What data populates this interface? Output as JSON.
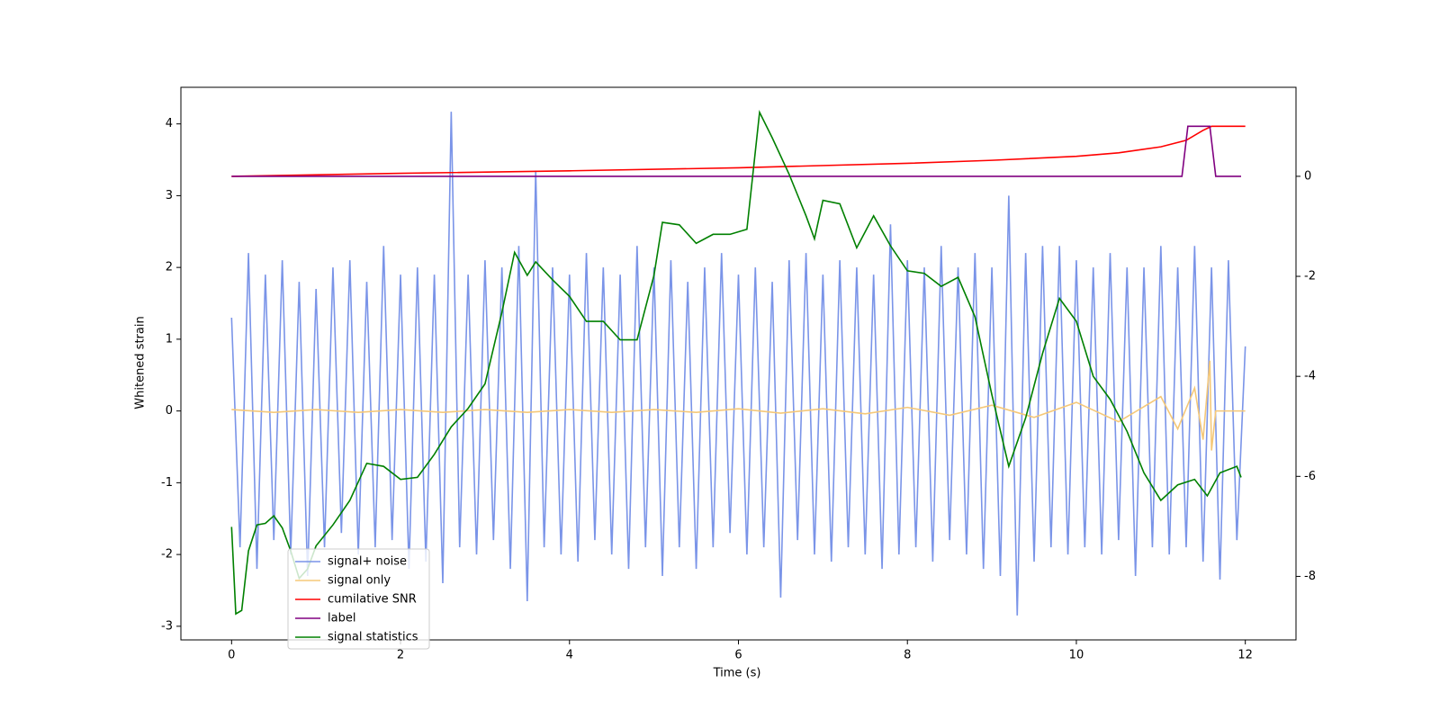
{
  "chart_data": {
    "type": "line",
    "x_label": "Time (s)",
    "y_label": "Whitened strain",
    "xlim": [
      -0.6,
      12.6
    ],
    "ylim": [
      -3.19,
      4.51
    ],
    "y2lim": [
      -9.27,
      1.78
    ],
    "xticks": [
      0,
      2,
      4,
      6,
      8,
      10,
      12
    ],
    "yticks": [
      -3,
      -2,
      -1,
      0,
      1,
      2,
      3,
      4
    ],
    "y2ticks": [
      -8,
      -6,
      -4,
      -2,
      0
    ],
    "legend": true,
    "series": [
      {
        "name": "signal+ noise",
        "color": "#7a94e8",
        "x": [
          0,
          0.1,
          0.2,
          0.3,
          0.4,
          0.5,
          0.6,
          0.7,
          0.8,
          0.9,
          1,
          1.1,
          1.2,
          1.3,
          1.4,
          1.5,
          1.6,
          1.7,
          1.8,
          1.9,
          2,
          2.1,
          2.2,
          2.3,
          2.4,
          2.5,
          2.6,
          2.7,
          2.8,
          2.9,
          3,
          3.1,
          3.2,
          3.3,
          3.4,
          3.5,
          3.6,
          3.7,
          3.8,
          3.9,
          4,
          4.1,
          4.2,
          4.3,
          4.4,
          4.5,
          4.6,
          4.7,
          4.8,
          4.9,
          5,
          5.1,
          5.2,
          5.3,
          5.4,
          5.5,
          5.6,
          5.7,
          5.8,
          5.9,
          6,
          6.1,
          6.2,
          6.3,
          6.4,
          6.5,
          6.6,
          6.7,
          6.8,
          6.9,
          7,
          7.1,
          7.2,
          7.3,
          7.4,
          7.5,
          7.6,
          7.7,
          7.8,
          7.9,
          8,
          8.1,
          8.2,
          8.3,
          8.4,
          8.5,
          8.6,
          8.7,
          8.8,
          8.9,
          9,
          9.1,
          9.2,
          9.3,
          9.4,
          9.5,
          9.6,
          9.7,
          9.8,
          9.9,
          10,
          10.1,
          10.2,
          10.3,
          10.4,
          10.5,
          10.6,
          10.7,
          10.8,
          10.9,
          11,
          11.1,
          11.2,
          11.3,
          11.4,
          11.5,
          11.6,
          11.7,
          11.8,
          11.9,
          12
        ],
        "values": [
          1.3,
          -1.9,
          2.2,
          -2.2,
          1.9,
          -1.8,
          2.1,
          -2.0,
          1.8,
          -2.3,
          1.7,
          -1.9,
          2.0,
          -1.7,
          2.1,
          -2.0,
          1.8,
          -1.9,
          2.3,
          -1.8,
          1.9,
          -2.2,
          2.0,
          -2.1,
          1.9,
          -2.4,
          4.17,
          -1.9,
          1.9,
          -2.0,
          2.1,
          -1.8,
          2.0,
          -2.2,
          2.3,
          -2.65,
          3.35,
          -1.9,
          2.0,
          -2.0,
          1.9,
          -2.1,
          2.2,
          -1.8,
          2.0,
          -2.0,
          1.9,
          -2.2,
          2.3,
          -1.9,
          2.0,
          -2.3,
          2.1,
          -1.9,
          1.8,
          -2.2,
          2.0,
          -1.9,
          2.2,
          -1.7,
          1.9,
          -2.0,
          2.0,
          -1.9,
          1.8,
          -2.6,
          2.1,
          -1.8,
          2.2,
          -2.0,
          1.9,
          -2.1,
          2.1,
          -1.9,
          2.0,
          -2.0,
          1.9,
          -2.2,
          2.6,
          -2.0,
          2.1,
          -1.9,
          2.0,
          -2.1,
          2.3,
          -1.8,
          2.0,
          -2.0,
          2.2,
          -2.2,
          2.0,
          -2.3,
          3.0,
          -2.85,
          2.2,
          -2.1,
          2.3,
          -1.9,
          2.3,
          -2.0,
          2.1,
          -1.9,
          2.0,
          -2.0,
          2.2,
          -1.8,
          2.0,
          -2.3,
          2.0,
          -1.9,
          2.3,
          -2.0,
          2.0,
          -1.9,
          2.3,
          -2.1,
          2.0,
          -2.35,
          2.1,
          -1.8,
          0.9
        ]
      },
      {
        "name": "signal only",
        "color": "#f5c878",
        "x": [
          0,
          0.5,
          1,
          1.5,
          2,
          2.5,
          3,
          3.5,
          4,
          4.5,
          5,
          5.5,
          6,
          6.5,
          7,
          7.5,
          8,
          8.5,
          9,
          9.5,
          10,
          10.5,
          11,
          11.2,
          11.4,
          11.5,
          11.58,
          11.6,
          11.65,
          12
        ],
        "values": [
          0.02,
          -0.02,
          0.02,
          -0.02,
          0.02,
          -0.02,
          0.02,
          -0.02,
          0.02,
          -0.02,
          0.02,
          -0.02,
          0.03,
          -0.03,
          0.03,
          -0.04,
          0.05,
          -0.06,
          0.08,
          -0.09,
          0.12,
          -0.15,
          0.2,
          -0.25,
          0.32,
          -0.4,
          0.7,
          -0.55,
          0,
          0
        ]
      },
      {
        "name": "cumilative SNR",
        "color": "#ff0000",
        "axis": "y2",
        "x": [
          0,
          2,
          4,
          6,
          8,
          9,
          10,
          10.5,
          11,
          11.3,
          11.5,
          11.6,
          12
        ],
        "values": [
          0,
          0.06,
          0.11,
          0.17,
          0.26,
          0.32,
          0.4,
          0.47,
          0.59,
          0.72,
          0.92,
          1.0,
          1.0
        ]
      },
      {
        "name": "label",
        "color": "#800080",
        "axis": "y2",
        "x": [
          0,
          11.25,
          11.32,
          11.58,
          11.65,
          11.95
        ],
        "values": [
          0,
          0,
          1,
          1,
          0,
          0
        ]
      },
      {
        "name": "signal statistics",
        "color": "#008000",
        "axis": "y2",
        "x": [
          0,
          0.05,
          0.12,
          0.2,
          0.3,
          0.4,
          0.5,
          0.6,
          0.7,
          0.8,
          0.9,
          1.0,
          1.2,
          1.4,
          1.6,
          1.8,
          2.0,
          2.2,
          2.4,
          2.6,
          2.8,
          3.0,
          3.2,
          3.35,
          3.5,
          3.6,
          3.8,
          4.0,
          4.2,
          4.4,
          4.6,
          4.8,
          5.0,
          5.1,
          5.3,
          5.5,
          5.7,
          5.9,
          6.1,
          6.25,
          6.4,
          6.6,
          6.8,
          6.9,
          7.0,
          7.2,
          7.4,
          7.6,
          7.8,
          8.0,
          8.2,
          8.4,
          8.6,
          8.8,
          9.0,
          9.2,
          9.4,
          9.6,
          9.8,
          10.0,
          10.2,
          10.4,
          10.6,
          10.8,
          11.0,
          11.2,
          11.4,
          11.55,
          11.7,
          11.9,
          11.95
        ],
        "values": [
          -7.01,
          -8.75,
          -8.68,
          -7.49,
          -6.97,
          -6.94,
          -6.79,
          -7.03,
          -7.49,
          -8.04,
          -7.85,
          -7.39,
          -6.97,
          -6.48,
          -5.74,
          -5.8,
          -6.06,
          -6.02,
          -5.56,
          -5.01,
          -4.64,
          -4.15,
          -2.72,
          -1.52,
          -1.98,
          -1.71,
          -2.07,
          -2.4,
          -2.9,
          -2.9,
          -3.27,
          -3.27,
          -1.98,
          -0.92,
          -0.97,
          -1.34,
          -1.16,
          -1.16,
          -1.06,
          1.28,
          0.77,
          0.04,
          -0.79,
          -1.25,
          -0.48,
          -0.55,
          -1.43,
          -0.79,
          -1.39,
          -1.89,
          -1.94,
          -2.2,
          -2.02,
          -2.81,
          -4.37,
          -5.8,
          -4.83,
          -3.54,
          -2.44,
          -2.9,
          -4.0,
          -4.46,
          -5.1,
          -5.93,
          -6.48,
          -6.17,
          -6.06,
          -6.39,
          -5.93,
          -5.8,
          -6.02
        ]
      }
    ]
  }
}
